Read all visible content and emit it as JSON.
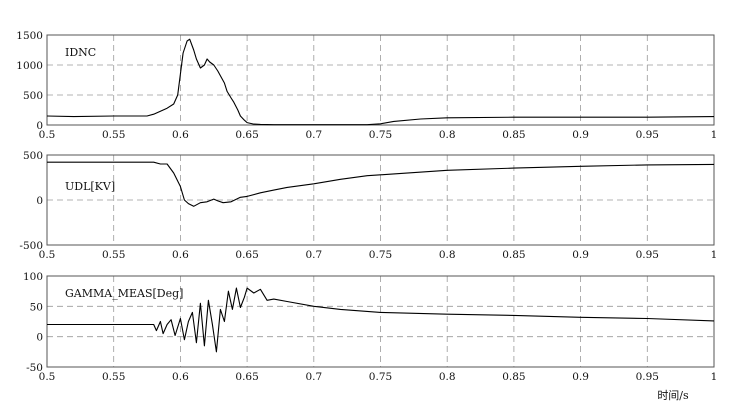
{
  "chart_data": [
    {
      "type": "line",
      "title": "IDNC",
      "xlim": [
        0.5,
        1.0
      ],
      "ylim": [
        0,
        1500
      ],
      "x_ticks": [
        "0.5",
        "0.55",
        "0.6",
        "0.65",
        "0.7",
        "0.75",
        "0.8",
        "0.85",
        "0.9",
        "0.95",
        "1"
      ],
      "y_ticks": [
        "1500",
        "1000",
        "500",
        "0"
      ],
      "grid": true,
      "color": "#000000",
      "series": [
        {
          "x": [
            0.5,
            0.52,
            0.55,
            0.575,
            0.58,
            0.585,
            0.59,
            0.595,
            0.598,
            0.6,
            0.602,
            0.605,
            0.607,
            0.61,
            0.612,
            0.615,
            0.618,
            0.62,
            0.622,
            0.625,
            0.628,
            0.63,
            0.633,
            0.635,
            0.638,
            0.64,
            0.643,
            0.645,
            0.648,
            0.65,
            0.655,
            0.66,
            0.67,
            0.7,
            0.74,
            0.75,
            0.76,
            0.78,
            0.8,
            0.85,
            0.9,
            0.95,
            1.0
          ],
          "y": [
            150,
            140,
            150,
            150,
            180,
            230,
            280,
            350,
            500,
            850,
            1200,
            1400,
            1430,
            1250,
            1100,
            950,
            1000,
            1100,
            1050,
            1000,
            900,
            820,
            700,
            560,
            450,
            380,
            250,
            150,
            80,
            40,
            15,
            10,
            5,
            5,
            5,
            20,
            60,
            100,
            120,
            130,
            130,
            130,
            140
          ]
        }
      ]
    },
    {
      "type": "line",
      "title": "UDL[KV]",
      "xlim": [
        0.5,
        1.0
      ],
      "ylim": [
        -500,
        500
      ],
      "x_ticks": [
        "0.5",
        "0.55",
        "0.6",
        "0.65",
        "0.7",
        "0.75",
        "0.8",
        "0.85",
        "0.9",
        "0.95",
        "1"
      ],
      "y_ticks": [
        "500",
        "0",
        "-500"
      ],
      "grid": true,
      "color": "#000000",
      "series": [
        {
          "x": [
            0.5,
            0.55,
            0.58,
            0.585,
            0.59,
            0.595,
            0.6,
            0.603,
            0.606,
            0.61,
            0.615,
            0.62,
            0.625,
            0.628,
            0.632,
            0.638,
            0.645,
            0.65,
            0.66,
            0.67,
            0.68,
            0.7,
            0.72,
            0.74,
            0.75,
            0.76,
            0.8,
            0.85,
            0.9,
            0.95,
            1.0
          ],
          "y": [
            420,
            420,
            420,
            400,
            400,
            300,
            150,
            0,
            -40,
            -70,
            -30,
            -20,
            10,
            -10,
            -30,
            -20,
            30,
            40,
            80,
            110,
            140,
            180,
            230,
            270,
            280,
            290,
            330,
            355,
            375,
            390,
            395
          ]
        }
      ]
    },
    {
      "type": "line",
      "title": "GAMMA_MEAS[Deg]",
      "xlim": [
        0.5,
        1.0
      ],
      "ylim": [
        -50,
        100
      ],
      "x_ticks": [
        "0.5",
        "0.55",
        "0.6",
        "0.65",
        "0.7",
        "0.75",
        "0.8",
        "0.85",
        "0.9",
        "0.95",
        "1"
      ],
      "y_ticks": [
        "100",
        "50",
        "0",
        "-50"
      ],
      "grid": true,
      "color": "#000000",
      "series": [
        {
          "x": [
            0.5,
            0.55,
            0.58,
            0.582,
            0.585,
            0.587,
            0.59,
            0.593,
            0.596,
            0.6,
            0.603,
            0.606,
            0.609,
            0.612,
            0.615,
            0.618,
            0.621,
            0.624,
            0.627,
            0.63,
            0.633,
            0.636,
            0.639,
            0.642,
            0.645,
            0.648,
            0.65,
            0.655,
            0.66,
            0.665,
            0.67,
            0.68,
            0.7,
            0.72,
            0.75,
            0.8,
            0.85,
            0.9,
            0.95,
            1.0
          ],
          "y": [
            20,
            20,
            20,
            10,
            25,
            5,
            20,
            28,
            2,
            30,
            -5,
            25,
            40,
            -10,
            55,
            -15,
            60,
            20,
            -25,
            45,
            25,
            75,
            45,
            80,
            48,
            65,
            80,
            72,
            78,
            60,
            62,
            58,
            50,
            45,
            40,
            37,
            35,
            32,
            30,
            26
          ]
        }
      ]
    }
  ],
  "x_axis_unit": "时间/s"
}
